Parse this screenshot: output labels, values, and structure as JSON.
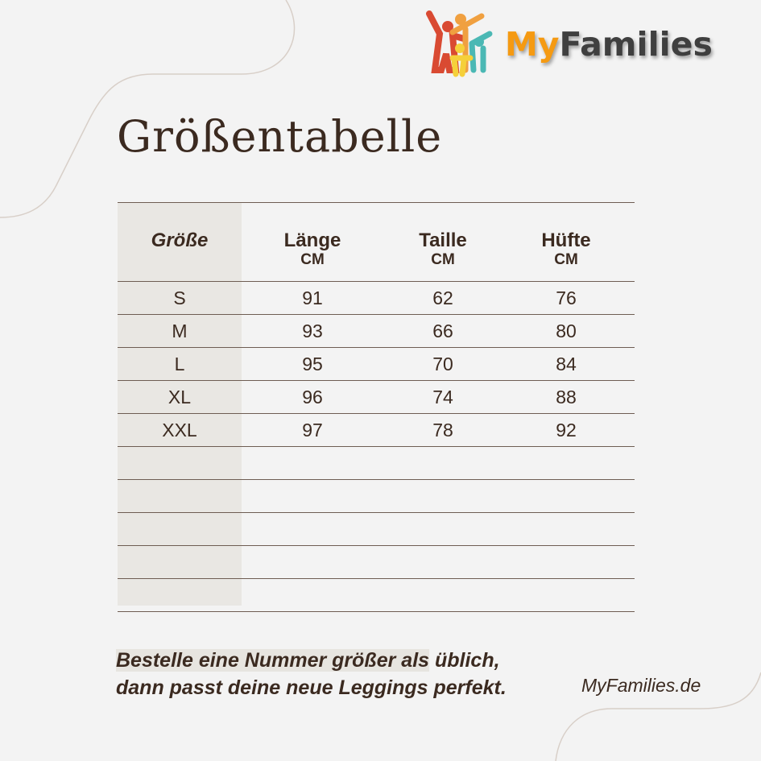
{
  "logo": {
    "my": "My",
    "families": "Families"
  },
  "title": "Größentabelle",
  "table": {
    "headers": [
      {
        "name": "Größe",
        "unit": ""
      },
      {
        "name": "Länge",
        "unit": "CM"
      },
      {
        "name": "Taille",
        "unit": "CM"
      },
      {
        "name": "Hüfte",
        "unit": "CM"
      }
    ],
    "rows": [
      [
        "S",
        "91",
        "62",
        "76"
      ],
      [
        "M",
        "93",
        "66",
        "80"
      ],
      [
        "L",
        "95",
        "70",
        "84"
      ],
      [
        "XL",
        "96",
        "74",
        "88"
      ],
      [
        "XXL",
        "97",
        "78",
        "92"
      ],
      [
        "",
        "",
        "",
        ""
      ],
      [
        "",
        "",
        "",
        ""
      ],
      [
        "",
        "",
        "",
        ""
      ],
      [
        "",
        "",
        "",
        ""
      ],
      [
        "",
        "",
        "",
        ""
      ]
    ]
  },
  "note": {
    "line1_highlight": "Bestelle eine Nummer größer als",
    "line1_rest": " üblich,",
    "line2": "dann passt deine neue Leggings perfekt."
  },
  "website": "MyFamilies.de"
}
